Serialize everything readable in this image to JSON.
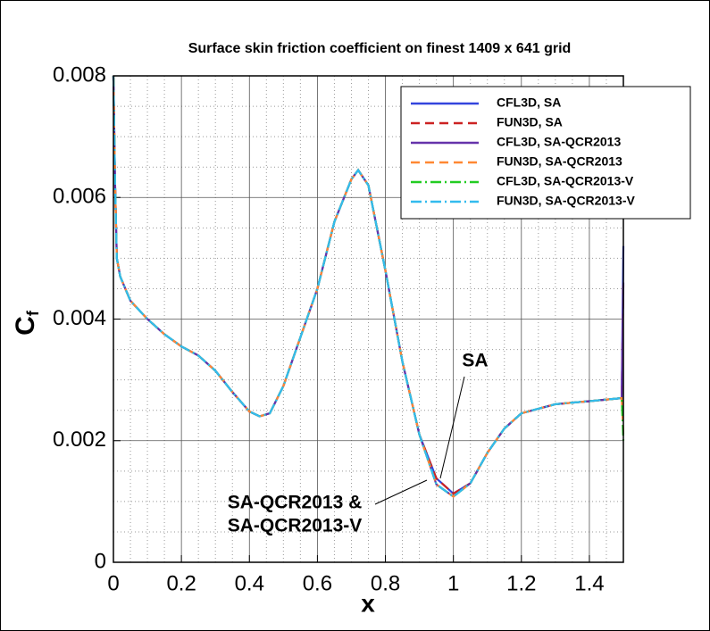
{
  "chart_data": {
    "type": "line",
    "title": "Surface skin friction coefficient on finest 1409 x 641 grid",
    "xlabel": "x",
    "ylabel": "C",
    "ylabel_subscript": "f",
    "xlim": [
      0,
      1.5
    ],
    "ylim": [
      0,
      0.008
    ],
    "xticks": [
      0,
      0.2,
      0.4,
      0.6,
      0.8,
      1,
      1.2,
      1.4
    ],
    "yticks": [
      0,
      0.002,
      0.004,
      0.006,
      0.008
    ],
    "grid": true,
    "minor_grid": true,
    "legend": "upper right",
    "annotations": [
      "SA",
      "SA-QCR2013 &",
      "SA-QCR2013-V"
    ],
    "x": [
      0,
      0.005,
      0.01,
      0.02,
      0.05,
      0.1,
      0.15,
      0.2,
      0.25,
      0.3,
      0.35,
      0.4,
      0.43,
      0.46,
      0.5,
      0.55,
      0.6,
      0.65,
      0.7,
      0.72,
      0.75,
      0.8,
      0.85,
      0.9,
      0.95,
      1,
      1.05,
      1.1,
      1.15,
      1.2,
      1.3,
      1.4,
      1.495,
      1.5
    ],
    "series": [
      {
        "name": "CFL3D, SA",
        "color": "#3344dd",
        "style": "solid",
        "values": [
          0.008,
          0.0062,
          0.005,
          0.0047,
          0.0043,
          0.004,
          0.00375,
          0.00355,
          0.0034,
          0.00315,
          0.0028,
          0.00248,
          0.0024,
          0.00245,
          0.0029,
          0.0037,
          0.0045,
          0.0056,
          0.0063,
          0.00645,
          0.0062,
          0.0048,
          0.0033,
          0.0021,
          0.00138,
          0.00113,
          0.0013,
          0.0018,
          0.0022,
          0.00245,
          0.0026,
          0.00265,
          0.0027,
          0.0052
        ]
      },
      {
        "name": "FUN3D, SA",
        "color": "#cc2222",
        "style": "dashed",
        "values": [
          0.008,
          0.0062,
          0.005,
          0.0047,
          0.0043,
          0.004,
          0.00375,
          0.00355,
          0.0034,
          0.00315,
          0.0028,
          0.00248,
          0.0024,
          0.00245,
          0.0029,
          0.0037,
          0.0045,
          0.0056,
          0.0063,
          0.00645,
          0.0062,
          0.0048,
          0.0033,
          0.0021,
          0.00138,
          0.00113,
          0.0013,
          0.0018,
          0.0022,
          0.00245,
          0.0026,
          0.00265,
          0.0027,
          0.0046
        ]
      },
      {
        "name": "CFL3D, SA-QCR2013",
        "color": "#6633aa",
        "style": "solid",
        "values": [
          0.008,
          0.0062,
          0.005,
          0.0047,
          0.0043,
          0.004,
          0.00375,
          0.00355,
          0.0034,
          0.00315,
          0.0028,
          0.00248,
          0.0024,
          0.00245,
          0.0029,
          0.0037,
          0.0045,
          0.0056,
          0.0063,
          0.00645,
          0.0062,
          0.0048,
          0.0033,
          0.0021,
          0.00128,
          0.00108,
          0.0013,
          0.0018,
          0.0022,
          0.00245,
          0.0026,
          0.00265,
          0.0027,
          0.0046
        ]
      },
      {
        "name": "FUN3D, SA-QCR2013",
        "color": "#ff8833",
        "style": "dashed",
        "values": [
          0.008,
          0.0062,
          0.005,
          0.0047,
          0.0043,
          0.004,
          0.00375,
          0.00355,
          0.0034,
          0.00315,
          0.0028,
          0.00248,
          0.0024,
          0.00245,
          0.0029,
          0.0037,
          0.0045,
          0.0056,
          0.0063,
          0.00645,
          0.0062,
          0.0048,
          0.0033,
          0.0021,
          0.00128,
          0.00108,
          0.0013,
          0.0018,
          0.0022,
          0.00245,
          0.0026,
          0.00265,
          0.0027,
          0.0021
        ]
      },
      {
        "name": "CFL3D, SA-QCR2013-V",
        "color": "#22cc22",
        "style": "dashdot",
        "values": [
          0.008,
          0.0062,
          0.005,
          0.0047,
          0.0043,
          0.004,
          0.00375,
          0.00355,
          0.0034,
          0.00315,
          0.0028,
          0.00248,
          0.0024,
          0.00245,
          0.0029,
          0.0037,
          0.0045,
          0.0056,
          0.0063,
          0.00645,
          0.0062,
          0.0048,
          0.0033,
          0.0021,
          0.00128,
          0.00108,
          0.0013,
          0.0018,
          0.0022,
          0.00245,
          0.0026,
          0.00265,
          0.0027,
          0.002
        ]
      },
      {
        "name": "FUN3D, SA-QCR2013-V",
        "color": "#33bbee",
        "style": "dashdot",
        "values": [
          0.008,
          0.0062,
          0.005,
          0.0047,
          0.0043,
          0.004,
          0.00375,
          0.00355,
          0.0034,
          0.00315,
          0.0028,
          0.00248,
          0.0024,
          0.00245,
          0.0029,
          0.0037,
          0.0045,
          0.0056,
          0.0063,
          0.00645,
          0.0062,
          0.0048,
          0.0033,
          0.0021,
          0.00128,
          0.00108,
          0.0013,
          0.0018,
          0.0022,
          0.00245,
          0.0026,
          0.00265,
          0.0027,
          0.0027
        ]
      }
    ]
  }
}
